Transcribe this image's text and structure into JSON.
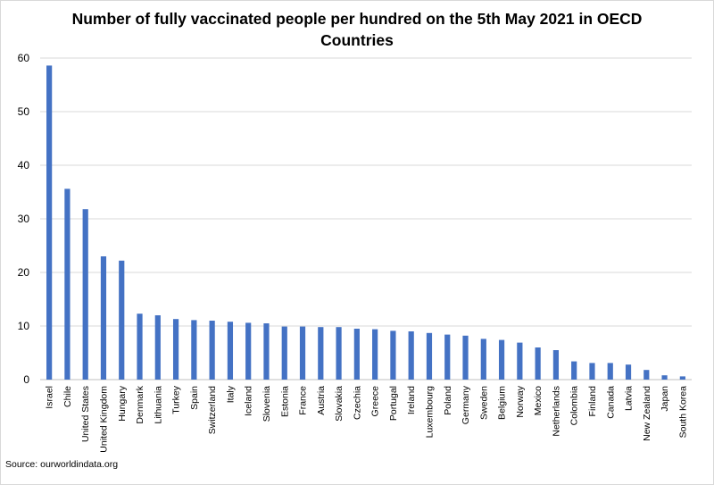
{
  "chart_data": {
    "type": "bar",
    "title_line1": "Number of fully vaccinated people per hundred on the 5th May 2021 in OECD",
    "title_line2": "Countries",
    "source": "Source: ourworldindata.org",
    "xlabel": "",
    "ylabel": "",
    "ylim": [
      0,
      60
    ],
    "yticks": [
      0,
      10,
      20,
      30,
      40,
      50,
      60
    ],
    "grid": true,
    "bar_color": "#4472c4",
    "categories": [
      "Israel",
      "Chile",
      "United States",
      "United Kingdom",
      "Hungary",
      "Denmark",
      "Lithuania",
      "Turkey",
      "Spain",
      "Switzerland",
      "Italy",
      "Iceland",
      "Slovenia",
      "Estonia",
      "France",
      "Austria",
      "Slovakia",
      "Czechia",
      "Greece",
      "Portugal",
      "Ireland",
      "Luxembourg",
      "Poland",
      "Germany",
      "Sweden",
      "Belgium",
      "Norway",
      "Mexico",
      "Netherlands",
      "Colombia",
      "Finland",
      "Canada",
      "Latvia",
      "New Zealand",
      "Japan",
      "South Korea"
    ],
    "values": [
      58.6,
      35.6,
      31.8,
      23.0,
      22.2,
      12.3,
      12.0,
      11.3,
      11.1,
      11.0,
      10.8,
      10.6,
      10.5,
      9.9,
      9.9,
      9.8,
      9.8,
      9.5,
      9.4,
      9.1,
      9.0,
      8.7,
      8.4,
      8.2,
      7.6,
      7.4,
      6.9,
      6.0,
      5.5,
      3.4,
      3.1,
      3.1,
      2.8,
      1.8,
      0.8,
      0.6
    ]
  }
}
